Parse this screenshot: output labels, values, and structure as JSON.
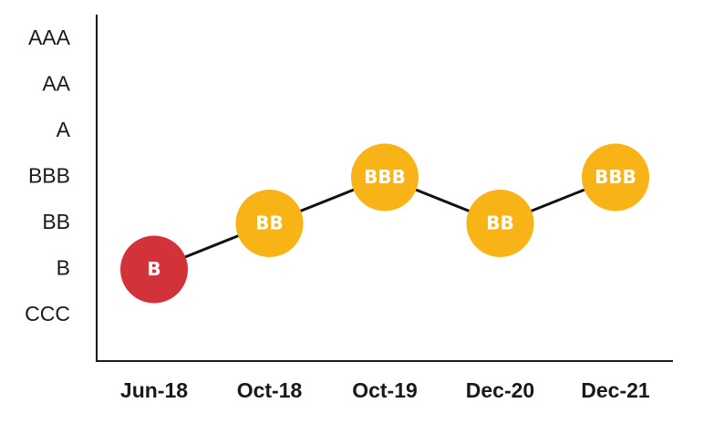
{
  "chart_data": {
    "type": "line",
    "title": "",
    "xlabel": "",
    "ylabel": "",
    "y_categories": [
      "CCC",
      "B",
      "BB",
      "BBB",
      "A",
      "AA",
      "AAA"
    ],
    "categories": [
      "Jun-18",
      "Oct-18",
      "Oct-19",
      "Dec-20",
      "Dec-21"
    ],
    "series": [
      {
        "values": [
          "B",
          "BB",
          "BBB",
          "BB",
          "BBB"
        ],
        "point_colors": [
          "#d2323a",
          "#f8b316",
          "#f8b316",
          "#f8b316",
          "#f8b316"
        ]
      }
    ],
    "line_color": "#111111",
    "grid": false
  }
}
